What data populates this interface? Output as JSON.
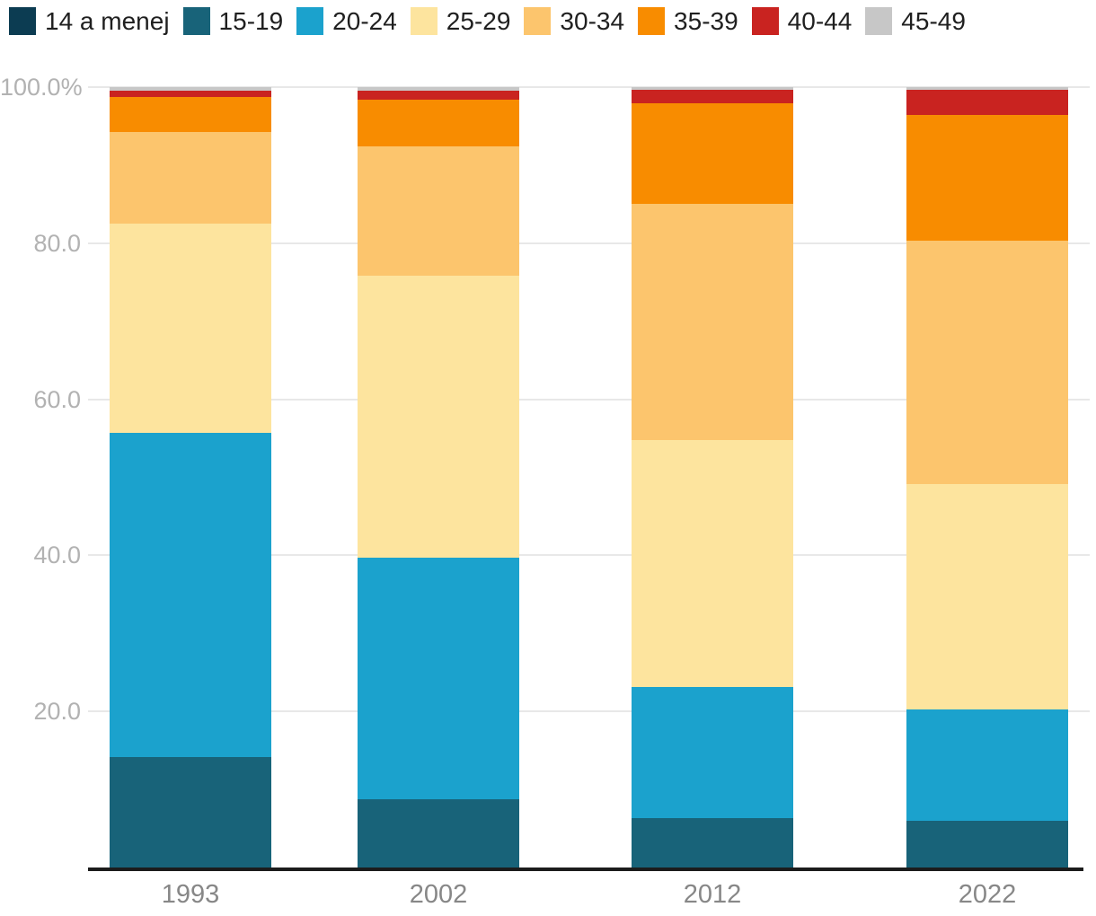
{
  "chart_data": {
    "type": "bar",
    "subtype": "stacked-100-percent",
    "title": "",
    "xlabel": "",
    "ylabel": "",
    "unit": "%",
    "ylim": [
      0,
      100
    ],
    "grid": true,
    "legend_position": "top",
    "categories": [
      "1993",
      "2002",
      "2012",
      "2022"
    ],
    "series": [
      {
        "name": "14 a menej",
        "color": "#0c3c52",
        "values": [
          0.0,
          0.0,
          0.0,
          0.0
        ]
      },
      {
        "name": "15-19",
        "color": "#186379",
        "values": [
          14.2,
          8.8,
          6.3,
          6.0
        ]
      },
      {
        "name": "20-24",
        "color": "#1ba2cd",
        "values": [
          41.5,
          30.9,
          16.8,
          14.3
        ]
      },
      {
        "name": "25-29",
        "color": "#fde49e",
        "values": [
          26.8,
          36.1,
          31.7,
          28.8
        ]
      },
      {
        "name": "30-34",
        "color": "#fcc56d",
        "values": [
          11.7,
          16.6,
          30.3,
          31.2
        ]
      },
      {
        "name": "35-39",
        "color": "#f88c00",
        "values": [
          4.5,
          6.0,
          12.8,
          16.1
        ]
      },
      {
        "name": "40-44",
        "color": "#c92320",
        "values": [
          0.9,
          1.2,
          1.8,
          3.3
        ]
      },
      {
        "name": "45-49",
        "color": "#c7c7c7",
        "values": [
          0.4,
          0.4,
          0.3,
          0.3
        ]
      }
    ],
    "y_axis": {
      "tick_labels": [
        "100.0%",
        "80.0",
        "60.0",
        "40.0",
        "20.0"
      ],
      "tick_values": [
        100,
        80,
        60,
        40,
        20
      ]
    },
    "x_axis": {
      "labels": [
        "1993",
        "2002",
        "2012",
        "2022"
      ]
    }
  }
}
